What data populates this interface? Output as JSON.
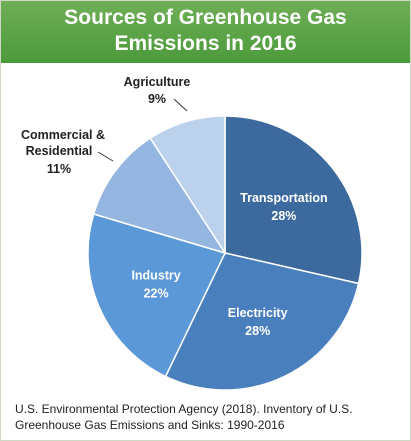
{
  "header": {
    "title_line1": "Sources of Greenhouse Gas",
    "title_line2": "Emissions in 2016"
  },
  "chart_data": {
    "type": "pie",
    "title": "Sources of Greenhouse Gas Emissions in 2016",
    "slices": [
      {
        "label": "Transportation",
        "value": 28,
        "value_label": "28%",
        "color": "#3d6a9e"
      },
      {
        "label": "Electricity",
        "value": 28,
        "value_label": "28%",
        "color": "#4a7fbd"
      },
      {
        "label": "Industry",
        "value": 22,
        "value_label": "22%",
        "color": "#5b98d8"
      },
      {
        "label": "Commercial & Residential",
        "label_lines": [
          "Commercial &",
          "Residential"
        ],
        "value": 11,
        "value_label": "11%",
        "color": "#94b6e0"
      },
      {
        "label": "Agriculture",
        "value": 9,
        "value_label": "9%",
        "color": "#bcd1ec"
      }
    ]
  },
  "footer": {
    "source_line1": "U.S. Environmental Protection Agency (2018). Inventory of U.S.",
    "source_line2": "Greenhouse Gas Emissions and Sinks: 1990-2016"
  },
  "colors": {
    "header_green": "#4c9a3b",
    "label_dark": "#222222",
    "label_light": "#ffffff"
  }
}
